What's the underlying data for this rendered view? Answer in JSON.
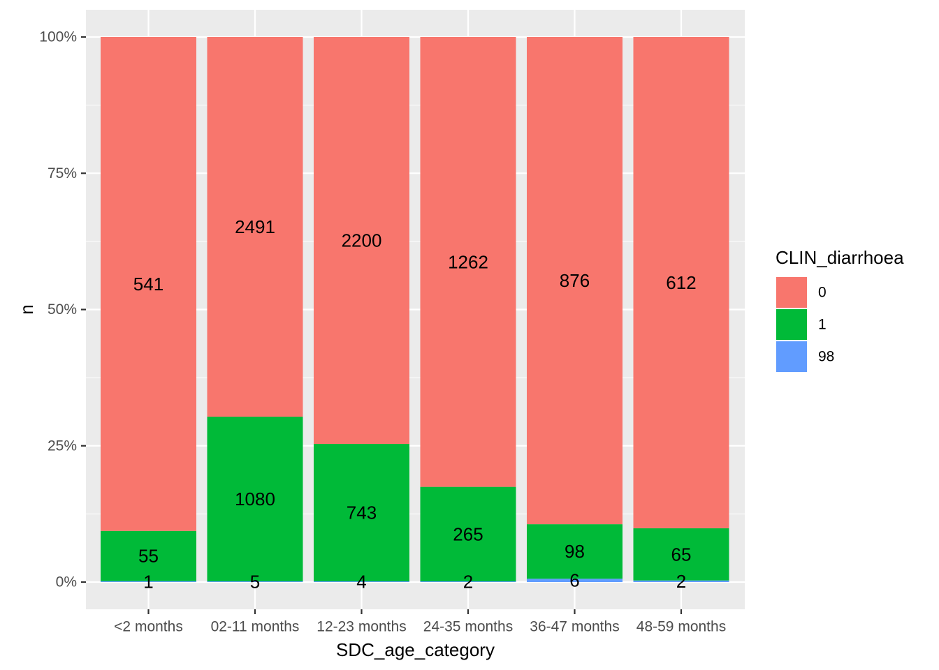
{
  "chart_data": {
    "type": "bar",
    "stacked": "percent",
    "categories": [
      "<2 months",
      "02-11 months",
      "12-23 months",
      "24-35 months",
      "36-47 months",
      "48-59 months"
    ],
    "series": [
      {
        "name": "0",
        "color": "#F8766D",
        "values": [
          541,
          2491,
          2200,
          1262,
          876,
          612
        ]
      },
      {
        "name": "1",
        "color": "#00BA38",
        "values": [
          55,
          1080,
          743,
          265,
          98,
          65
        ]
      },
      {
        "name": "98",
        "color": "#619CFF",
        "values": [
          1,
          5,
          4,
          2,
          6,
          2
        ]
      }
    ],
    "xlabel": "SDC_age_category",
    "ylabel": "n",
    "yticks": [
      "0%",
      "25%",
      "50%",
      "75%",
      "100%"
    ],
    "ytick_values": [
      0,
      0.25,
      0.5,
      0.75,
      1
    ],
    "ylim": [
      0,
      1
    ],
    "legend": {
      "title": "CLIN_diarrhoea",
      "position": "right"
    },
    "grid": true,
    "panel_background": "#EBEBEB"
  }
}
